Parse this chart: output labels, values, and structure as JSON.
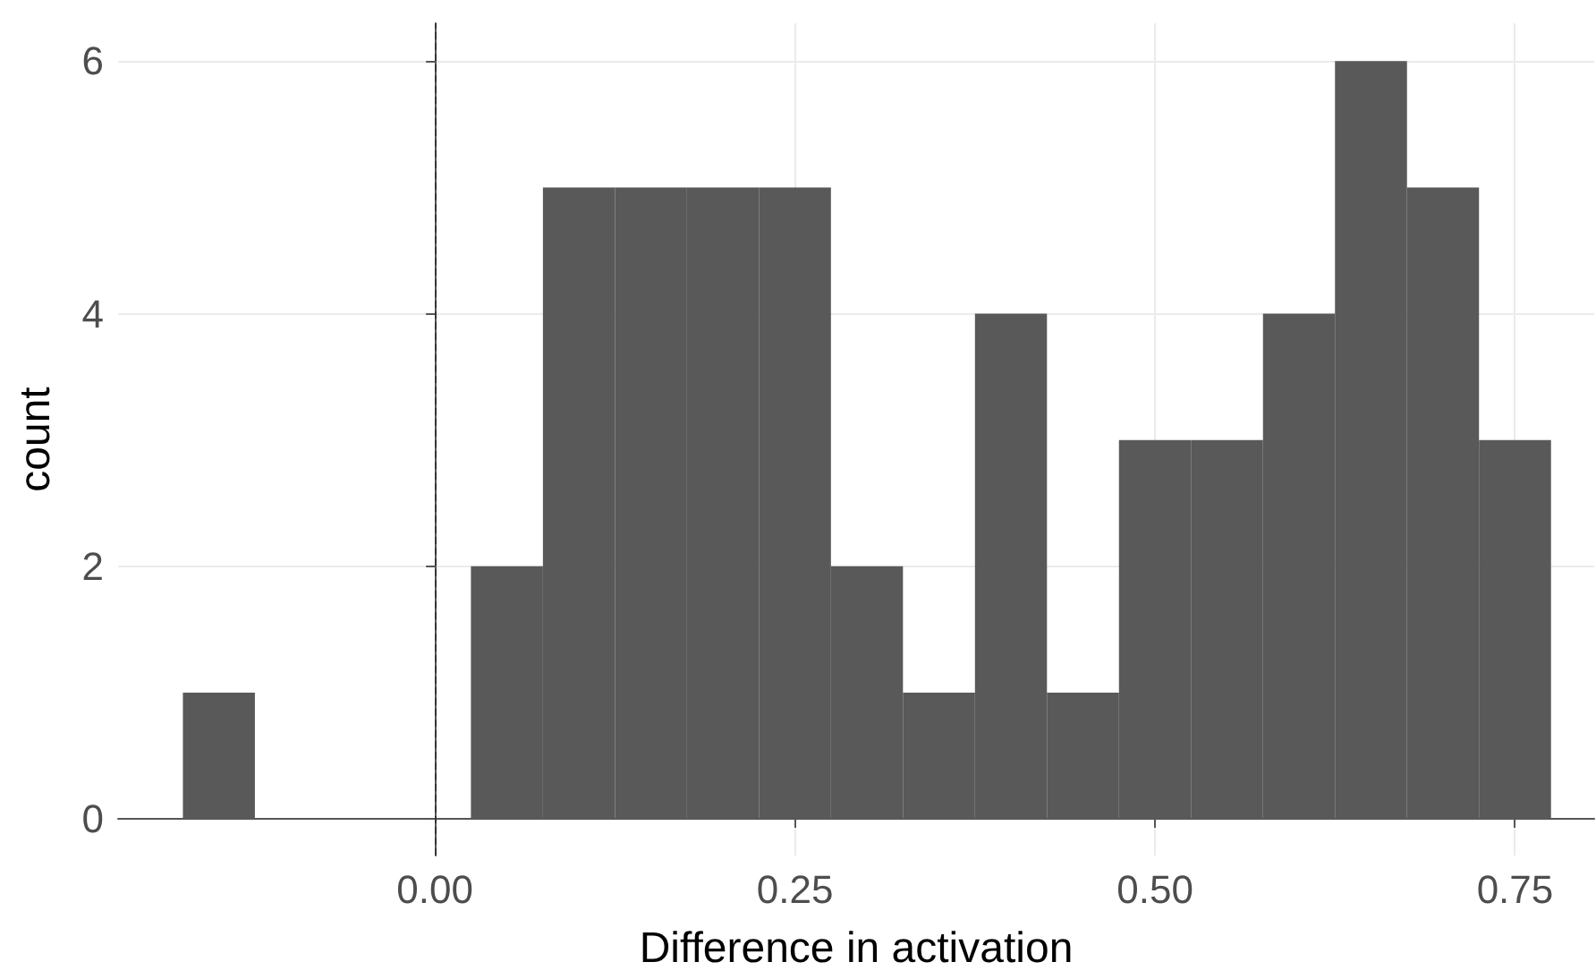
{
  "chart_data": {
    "type": "histogram",
    "xlabel": "Difference in activation",
    "ylabel": "count",
    "bins": [
      -0.175,
      -0.125,
      -0.075,
      -0.025,
      0.025,
      0.075,
      0.125,
      0.175,
      0.225,
      0.275,
      0.325,
      0.375,
      0.425,
      0.475,
      0.525,
      0.575,
      0.625,
      0.675,
      0.725,
      0.775
    ],
    "values": [
      1,
      0,
      0,
      0,
      2,
      5,
      5,
      5,
      5,
      2,
      1,
      4,
      1,
      3,
      3,
      4,
      6,
      5,
      3
    ],
    "color": "#595959",
    "xlim": [
      -0.22,
      0.805
    ],
    "xticks": [
      {
        "value": 0,
        "label": "0.00"
      },
      0.25,
      {
        "value": 0.5,
        "label": "0.50"
      },
      0.75
    ],
    "ylim": [
      -0.29,
      6.3
    ],
    "yticks": [
      0,
      2,
      4,
      6
    ],
    "grid": true,
    "ref_lines": [
      {
        "axis": "x",
        "value": 0,
        "line_style": "dashed",
        "color": "#333333"
      }
    ]
  }
}
